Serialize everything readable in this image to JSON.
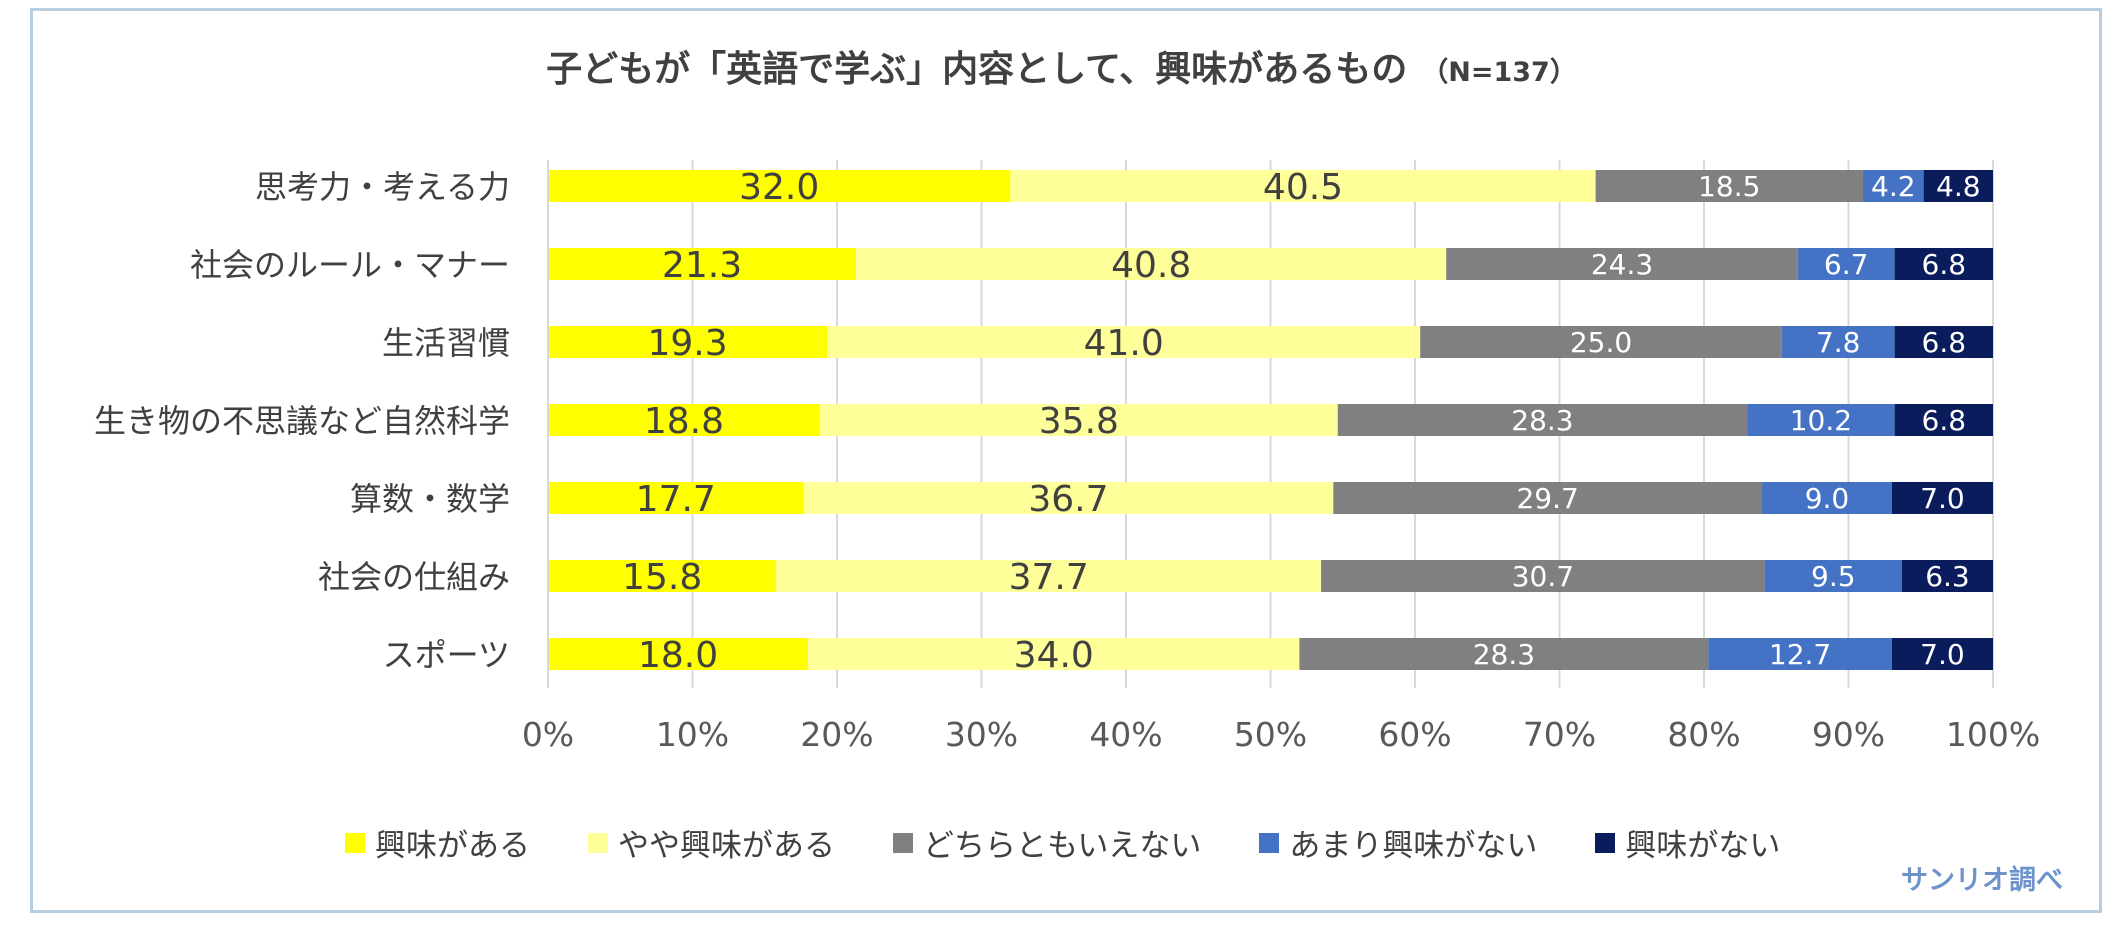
{
  "title": "子どもが「英語で学ぶ」内容として、興味があるもの",
  "title_n": "（N=137）",
  "source": "サンリオ調べ",
  "chart_data": {
    "type": "bar",
    "orientation": "horizontal",
    "stacked": "percent",
    "categories": [
      "思考力・考える力",
      "社会のルール・マナー",
      "生活習慣",
      "生き物の不思議など自然科学",
      "算数・数学",
      "社会の仕組み",
      "スポーツ"
    ],
    "series": [
      {
        "name": "興味がある",
        "color": "#ffff00",
        "label_color": "#404040",
        "values": [
          32.0,
          21.3,
          19.3,
          18.8,
          17.7,
          15.8,
          18.0
        ]
      },
      {
        "name": "やや興味がある",
        "color": "#ffff99",
        "label_color": "#404040",
        "values": [
          40.5,
          40.8,
          41.0,
          35.8,
          36.7,
          37.7,
          34.0
        ]
      },
      {
        "name": "どちらともいえない",
        "color": "#808080",
        "label_color": "#ffffff",
        "values": [
          18.5,
          24.3,
          25.0,
          28.3,
          29.7,
          30.7,
          28.3
        ]
      },
      {
        "name": "あまり興味がない",
        "color": "#4472c4",
        "label_color": "#ffffff",
        "values": [
          4.2,
          6.7,
          7.8,
          10.2,
          9.0,
          9.5,
          12.7
        ]
      },
      {
        "name": "興味がない",
        "color": "#0b1c5c",
        "label_color": "#ffffff",
        "values": [
          4.8,
          6.8,
          6.8,
          6.8,
          7.0,
          6.3,
          7.0
        ]
      }
    ],
    "xlim": [
      0,
      100
    ],
    "x_ticks": [
      "0%",
      "10%",
      "20%",
      "30%",
      "40%",
      "50%",
      "60%",
      "70%",
      "80%",
      "90%",
      "100%"
    ],
    "grid": true,
    "legend_position": "bottom"
  }
}
